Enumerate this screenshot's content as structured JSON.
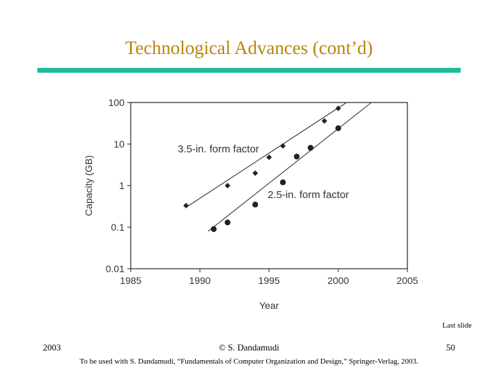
{
  "slide": {
    "title": "Technological Advances (cont’d)",
    "last_slide": "Last slide"
  },
  "footer": {
    "year": "2003",
    "author": "© S. Dandamudi",
    "page": "50",
    "note": "To be used with S. Dandamudi, “Fundamentals of Computer Organization and Design,” Springer-Verlag, 2003."
  },
  "colors": {
    "title": "#b8860b",
    "rule": "#1abc9c",
    "marks": "#222222"
  },
  "chart_data": {
    "type": "scatter",
    "xlabel": "Year",
    "ylabel": "Capacity (GB)",
    "xlim": [
      1985,
      2005
    ],
    "ylim": [
      0.01,
      100
    ],
    "yscale": "log",
    "xticks": [
      1985,
      1990,
      1995,
      2000,
      2005
    ],
    "yticks": [
      0.01,
      0.1,
      1,
      10,
      100
    ],
    "ytick_labels": [
      "0.01",
      "0.1",
      "1",
      "10",
      "100"
    ],
    "grid": false,
    "series": [
      {
        "name": "3.5-in. form factor",
        "marker": "diamond",
        "points": [
          [
            1989,
            0.33
          ],
          [
            1992,
            1.0
          ],
          [
            1994,
            2.0
          ],
          [
            1995,
            4.8
          ],
          [
            1996,
            9.0
          ],
          [
            1999,
            36
          ],
          [
            2000,
            72
          ]
        ],
        "trend": [
          [
            1989,
            0.3
          ],
          [
            2000.6,
            100
          ]
        ]
      },
      {
        "name": "2.5-in. form factor",
        "marker": "circle",
        "points": [
          [
            1991,
            0.09
          ],
          [
            1992,
            0.13
          ],
          [
            1994,
            0.35
          ],
          [
            1996,
            1.2
          ],
          [
            1997,
            5.0
          ],
          [
            1998,
            8.1
          ],
          [
            2000,
            24
          ]
        ],
        "trend": [
          [
            1990.6,
            0.08
          ],
          [
            2002.4,
            100
          ]
        ]
      }
    ]
  }
}
